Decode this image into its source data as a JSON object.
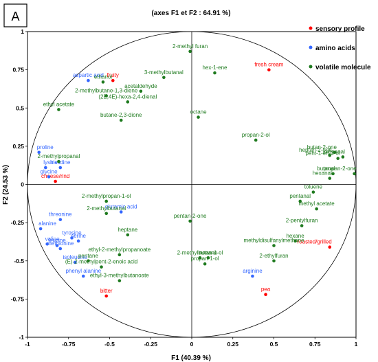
{
  "chart_data": {
    "type": "scatter",
    "panel_label": "A",
    "title": "(axes F1 et F2 : 64.91 %)",
    "xlabel": "F1 (40.39 %)",
    "ylabel": "F2 (24.53 %)",
    "xlim": [
      -1,
      1
    ],
    "ylim": [
      -1,
      1
    ],
    "xticks": [
      "-1",
      "-0.75",
      "-0.5",
      "-0.25",
      "0",
      "0.25",
      "0.5",
      "0.75",
      "1"
    ],
    "yticks": [
      "-1",
      "-0.75",
      "-0.5",
      "-0.25",
      "0",
      "0.25",
      "0.5",
      "0.75",
      "1"
    ],
    "correlation_circle": true,
    "legend_position": "top-right",
    "series": [
      {
        "name": "sensory profile",
        "color": "#ff0000",
        "points": [
          {
            "label": "fruity",
            "x": -0.48,
            "y": 0.68
          },
          {
            "label": "fresh cream",
            "x": 0.47,
            "y": 0.75
          },
          {
            "label": "cheese/rind",
            "x": -0.83,
            "y": 0.02
          },
          {
            "label": "roasted/grilled",
            "x": 0.84,
            "y": -0.41
          },
          {
            "label": "pea",
            "x": 0.45,
            "y": -0.72
          },
          {
            "label": "bitter",
            "x": -0.52,
            "y": -0.73
          }
        ]
      },
      {
        "name": "amino acids",
        "color": "#3366ff",
        "points": [
          {
            "label": "aspartic acid",
            "x": -0.63,
            "y": 0.68
          },
          {
            "label": "proline",
            "x": -0.93,
            "y": 0.21
          },
          {
            "label": "lysine",
            "x": -0.89,
            "y": 0.11
          },
          {
            "label": "histidine",
            "x": -0.8,
            "y": 0.11
          },
          {
            "label": "glycine",
            "x": -0.87,
            "y": 0.05
          },
          {
            "label": "glutamic acid",
            "x": -0.43,
            "y": -0.18
          },
          {
            "label": "threonine",
            "x": -0.8,
            "y": -0.23
          },
          {
            "label": "alanine",
            "x": -0.92,
            "y": -0.29
          },
          {
            "label": "tyrosine",
            "x": -0.73,
            "y": -0.35
          },
          {
            "label": "valine",
            "x": -0.88,
            "y": -0.39
          },
          {
            "label": "leucine",
            "x": -0.82,
            "y": -0.4
          },
          {
            "label": "serine",
            "x": -0.69,
            "y": -0.37
          },
          {
            "label": "methionine",
            "x": -0.8,
            "y": -0.42
          },
          {
            "label": "isoleucine",
            "x": -0.71,
            "y": -0.51
          },
          {
            "label": "phenyl alanine",
            "x": -0.66,
            "y": -0.6
          },
          {
            "label": "arginine",
            "x": 0.37,
            "y": -0.6
          }
        ]
      },
      {
        "name": "volatile molecule",
        "color": "#1e7a1e",
        "points": [
          {
            "label": "2-methyl furan",
            "x": -0.01,
            "y": 0.87
          },
          {
            "label": "hex-1-ene",
            "x": 0.14,
            "y": 0.73
          },
          {
            "label": "ethanol",
            "x": -0.54,
            "y": 0.67
          },
          {
            "label": "3-methylbutanal",
            "x": -0.17,
            "y": 0.7
          },
          {
            "label": "acetaldehyde",
            "x": -0.31,
            "y": 0.61
          },
          {
            "label": "2-methylbutane-1,3-diene",
            "x": -0.52,
            "y": 0.58
          },
          {
            "label": "(2E,4E)-hexa-2,4-dienal",
            "x": -0.39,
            "y": 0.54
          },
          {
            "label": "ethyl acetate",
            "x": -0.81,
            "y": 0.49
          },
          {
            "label": "butane-2,3-dione",
            "x": -0.43,
            "y": 0.42
          },
          {
            "label": "octane",
            "x": 0.04,
            "y": 0.44
          },
          {
            "label": "propan-2-ol",
            "x": 0.39,
            "y": 0.29
          },
          {
            "label": "2-methylpropanal",
            "x": -0.81,
            "y": 0.15
          },
          {
            "label": "butan-2-one",
            "x": 0.87,
            "y": 0.21
          },
          {
            "label": "heptan-2-one",
            "x": 0.84,
            "y": 0.19
          },
          {
            "label": "pent-1-en-3-ol",
            "x": 0.89,
            "y": 0.17
          },
          {
            "label": "propanal",
            "x": 0.92,
            "y": 0.18
          },
          {
            "label": "propan-2-one",
            "x": 0.99,
            "y": 0.07
          },
          {
            "label": "butanal",
            "x": 0.86,
            "y": 0.07
          },
          {
            "label": "hexanal",
            "x": 0.84,
            "y": 0.04
          },
          {
            "label": "toluene",
            "x": 0.74,
            "y": -0.05
          },
          {
            "label": "pentanal",
            "x": 0.66,
            "y": -0.11
          },
          {
            "label": "methyl acetate",
            "x": 0.76,
            "y": -0.16
          },
          {
            "label": "2-methylpropan-1-ol",
            "x": -0.52,
            "y": -0.11
          },
          {
            "label": "2-methylbutanal",
            "x": -0.52,
            "y": -0.19
          },
          {
            "label": "pentan-2-one",
            "x": -0.01,
            "y": -0.24
          },
          {
            "label": "2-pentylfuran",
            "x": 0.67,
            "y": -0.27
          },
          {
            "label": "heptane",
            "x": -0.39,
            "y": -0.33
          },
          {
            "label": "hexane",
            "x": 0.63,
            "y": -0.37
          },
          {
            "label": "methyldisulfanylmethane",
            "x": 0.5,
            "y": -0.4
          },
          {
            "label": "2-methylbutan-1-ol",
            "x": 0.05,
            "y": -0.48
          },
          {
            "label": "nonane",
            "x": 0.1,
            "y": -0.48
          },
          {
            "label": "propan-1-ol",
            "x": 0.08,
            "y": -0.52
          },
          {
            "label": "2-ethylfuran",
            "x": 0.5,
            "y": -0.5
          },
          {
            "label": "ethyl-2-methylpropanoate",
            "x": -0.44,
            "y": -0.46
          },
          {
            "label": "pentane",
            "x": -0.63,
            "y": -0.5
          },
          {
            "label": "(E)-2-methylpent-2-enoic acid",
            "x": -0.55,
            "y": -0.54
          },
          {
            "label": "ethyl-3-methylbutanoate",
            "x": -0.44,
            "y": -0.63
          }
        ]
      }
    ]
  }
}
